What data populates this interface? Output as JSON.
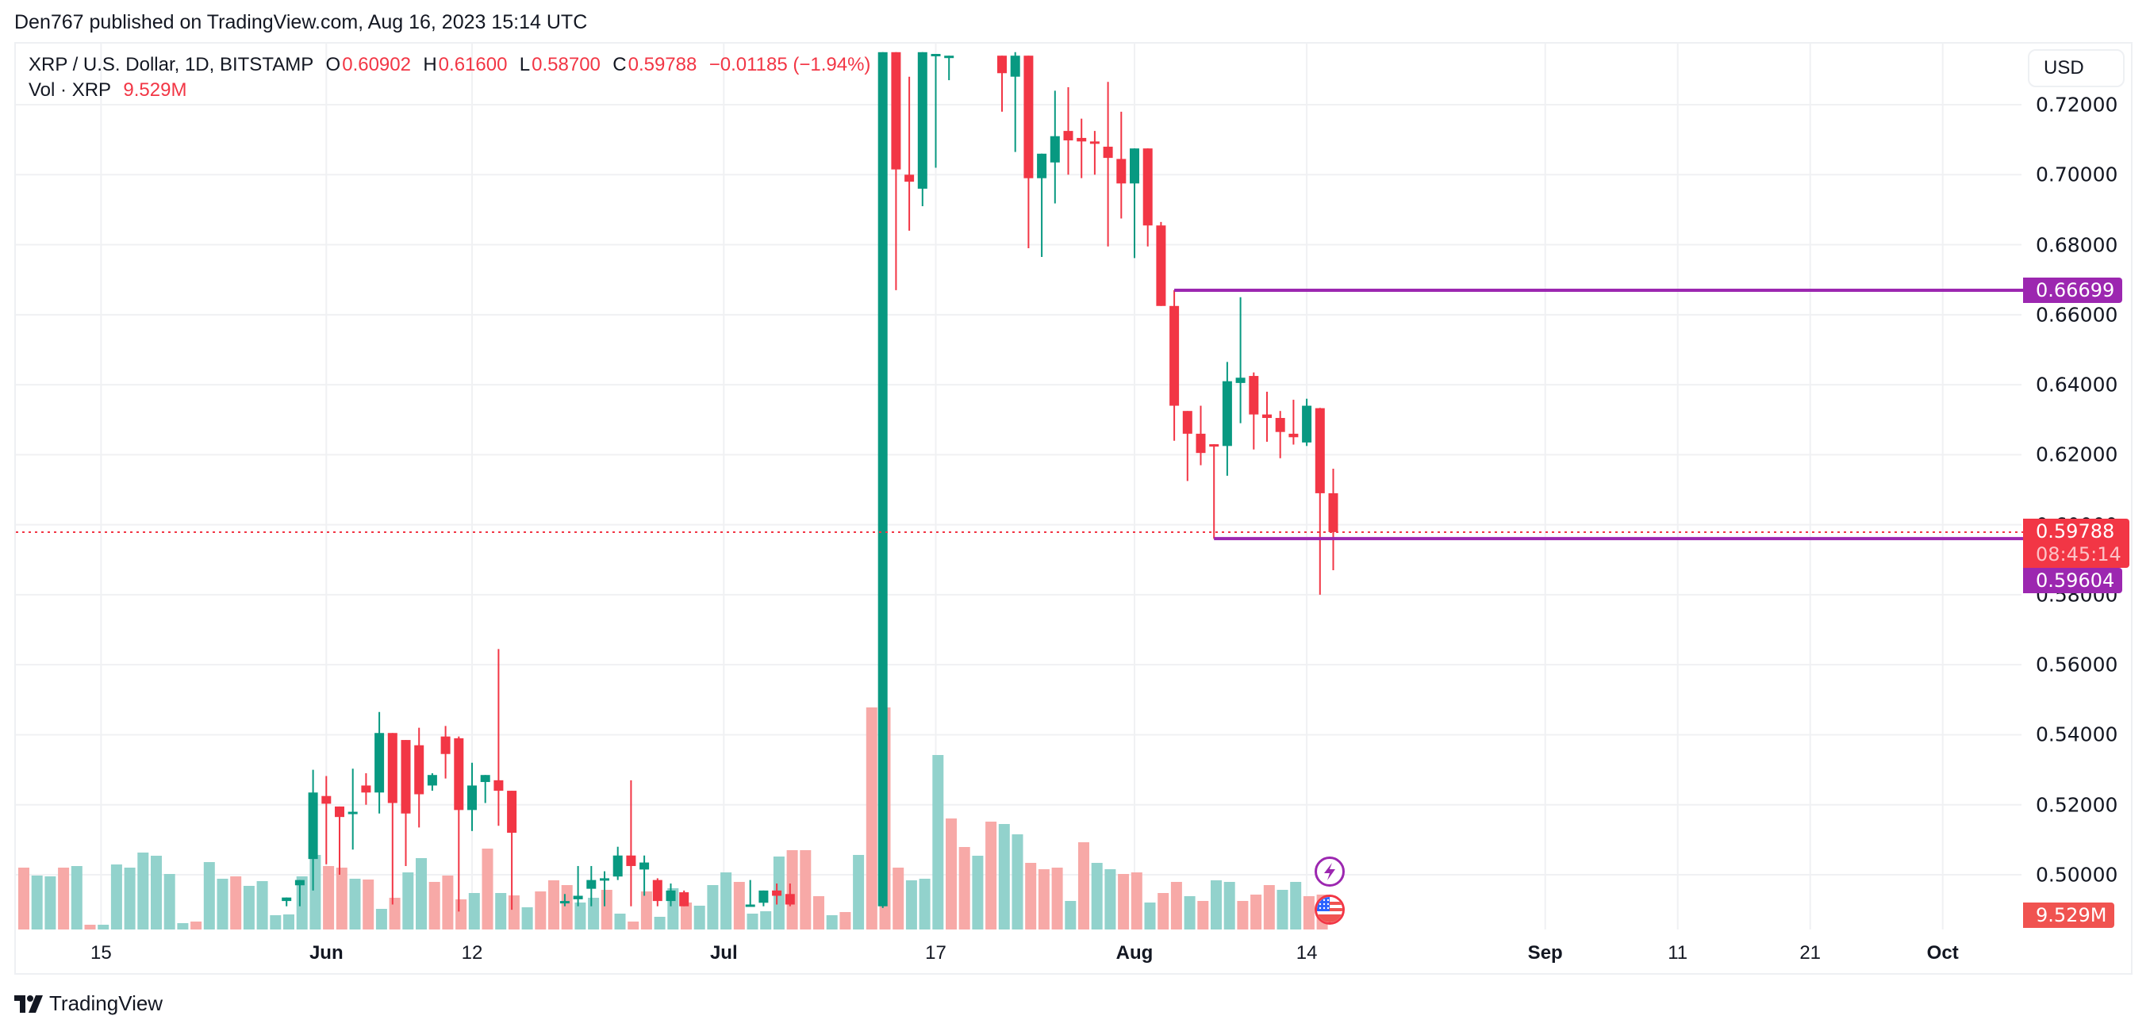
{
  "header": {
    "published": "Den767 published on TradingView.com, Aug 16, 2023 15:14 UTC"
  },
  "legend": {
    "symbol": "XRP / U.S. Dollar, 1D, BITSTAMP",
    "o_label": "O",
    "o_value": "0.60902",
    "h_label": "H",
    "h_value": "0.61600",
    "l_label": "L",
    "l_value": "0.58700",
    "c_label": "C",
    "c_value": "0.59788",
    "change": "−0.01185 (−1.94%)",
    "vol_label": "Vol · XRP",
    "vol_value": "9.529M"
  },
  "currency_button": "USD",
  "price_axis": {
    "ticks": [
      "0.72000",
      "0.70000",
      "0.68000",
      "0.66000",
      "0.64000",
      "0.62000",
      "0.60000",
      "0.58000",
      "0.56000",
      "0.54000",
      "0.52000",
      "0.50000"
    ],
    "tags": {
      "resistance": "0.66699",
      "last_price": "0.59788",
      "countdown": "08:45:14",
      "support": "0.59604",
      "volume": "9.529M"
    }
  },
  "time_axis": {
    "labels": [
      {
        "text": "15",
        "bold": false
      },
      {
        "text": "Jun",
        "bold": true
      },
      {
        "text": "12",
        "bold": false
      },
      {
        "text": "Jul",
        "bold": true
      },
      {
        "text": "17",
        "bold": false
      },
      {
        "text": "Aug",
        "bold": true
      },
      {
        "text": "14",
        "bold": false
      },
      {
        "text": "Sep",
        "bold": true
      },
      {
        "text": "11",
        "bold": false
      },
      {
        "text": "21",
        "bold": false
      },
      {
        "text": "Oct",
        "bold": true
      }
    ]
  },
  "events": [
    {
      "name": "lightning-event-icon",
      "type": "earnings"
    },
    {
      "name": "us-flag-event-icon",
      "type": "economic"
    }
  ],
  "brand": {
    "name": "TradingView"
  },
  "colors": {
    "up": "#089981",
    "down": "#f23645",
    "vol_up": "#92d2cc",
    "vol_down": "#f7a9a7",
    "level_line": "#9c27b0",
    "grid": "#f0f1f3"
  },
  "chart_data": {
    "type": "candlestick",
    "title": "XRP / U.S. Dollar, 1D, BITSTAMP",
    "ylabel": "USD",
    "ylim": [
      0.492,
      0.7325
    ],
    "x_range": [
      "2023-05-10",
      "2023-10-08"
    ],
    "x_tick_labels": [
      "15",
      "Jun",
      "12",
      "Jul",
      "17",
      "Aug",
      "14",
      "Sep",
      "11",
      "21",
      "Oct"
    ],
    "y_tick_labels": [
      "0.72000",
      "0.70000",
      "0.68000",
      "0.66000",
      "0.64000",
      "0.62000",
      "0.60000",
      "0.58000",
      "0.56000",
      "0.54000",
      "0.52000",
      "0.50000"
    ],
    "horizontal_lines": [
      {
        "label": "resistance",
        "value": 0.66699,
        "from": "2023-08-04"
      },
      {
        "label": "support",
        "value": 0.59604,
        "from": "2023-08-07"
      }
    ],
    "last": {
      "open": 0.60902,
      "high": 0.616,
      "low": 0.587,
      "close": 0.59788,
      "change": -0.01185,
      "change_pct": -1.94,
      "volume": "9.529M"
    },
    "candles": [
      {
        "d": "2023-05-29",
        "o": 0.4925,
        "h": 0.4935,
        "l": 0.491,
        "c": 0.4935
      },
      {
        "d": "2023-05-30",
        "o": 0.497,
        "h": 0.4985,
        "l": 0.491,
        "c": 0.4985
      },
      {
        "d": "2023-05-31",
        "o": 0.5045,
        "h": 0.53,
        "l": 0.4955,
        "c": 0.5235
      },
      {
        "d": "2023-06-01",
        "o": 0.5225,
        "h": 0.5282,
        "l": 0.503,
        "c": 0.5203
      },
      {
        "d": "2023-06-02",
        "o": 0.5195,
        "h": 0.5195,
        "l": 0.5,
        "c": 0.5165
      },
      {
        "d": "2023-06-03",
        "o": 0.518,
        "h": 0.5303,
        "l": 0.5072,
        "c": 0.518
      },
      {
        "d": "2023-06-04",
        "o": 0.5255,
        "h": 0.529,
        "l": 0.52,
        "c": 0.5235
      },
      {
        "d": "2023-06-05",
        "o": 0.5235,
        "h": 0.5465,
        "l": 0.5175,
        "c": 0.5405
      },
      {
        "d": "2023-06-06",
        "o": 0.5405,
        "h": 0.5375,
        "l": 0.4915,
        "c": 0.5205
      },
      {
        "d": "2023-06-07",
        "o": 0.5385,
        "h": 0.5385,
        "l": 0.5025,
        "c": 0.5175
      },
      {
        "d": "2023-06-08",
        "o": 0.537,
        "h": 0.542,
        "l": 0.5135,
        "c": 0.523
      },
      {
        "d": "2023-06-09",
        "o": 0.5255,
        "h": 0.529,
        "l": 0.524,
        "c": 0.5285
      },
      {
        "d": "2023-06-10",
        "o": 0.5395,
        "h": 0.5425,
        "l": 0.5275,
        "c": 0.5345
      },
      {
        "d": "2023-06-11",
        "o": 0.539,
        "h": 0.5395,
        "l": 0.4895,
        "c": 0.5185
      },
      {
        "d": "2023-06-12",
        "o": 0.5185,
        "h": 0.532,
        "l": 0.5125,
        "c": 0.5255
      },
      {
        "d": "2023-06-13",
        "o": 0.5265,
        "h": 0.5285,
        "l": 0.5205,
        "c": 0.5285
      },
      {
        "d": "2023-06-14",
        "o": 0.527,
        "h": 0.5645,
        "l": 0.514,
        "c": 0.524
      },
      {
        "d": "2023-06-15",
        "o": 0.524,
        "h": 0.522,
        "l": 0.49,
        "c": 0.512
      },
      {
        "d": "2023-06-19",
        "o": 0.4925,
        "h": 0.4945,
        "l": 0.491,
        "c": 0.4925
      },
      {
        "d": "2023-06-20",
        "o": 0.493,
        "h": 0.5025,
        "l": 0.491,
        "c": 0.494
      },
      {
        "d": "2023-06-21",
        "o": 0.496,
        "h": 0.5025,
        "l": 0.491,
        "c": 0.4985
      },
      {
        "d": "2023-06-22",
        "o": 0.499,
        "h": 0.501,
        "l": 0.491,
        "c": 0.499
      },
      {
        "d": "2023-06-23",
        "o": 0.4995,
        "h": 0.508,
        "l": 0.4985,
        "c": 0.5055
      },
      {
        "d": "2023-06-24",
        "o": 0.5055,
        "h": 0.527,
        "l": 0.491,
        "c": 0.5025
      },
      {
        "d": "2023-06-25",
        "o": 0.5015,
        "h": 0.5055,
        "l": 0.494,
        "c": 0.5035
      },
      {
        "d": "2023-06-26",
        "o": 0.4985,
        "h": 0.499,
        "l": 0.491,
        "c": 0.4925
      },
      {
        "d": "2023-06-27",
        "o": 0.4925,
        "h": 0.4975,
        "l": 0.491,
        "c": 0.4955
      },
      {
        "d": "2023-06-28",
        "o": 0.495,
        "h": 0.4955,
        "l": 0.491,
        "c": 0.491
      },
      {
        "d": "2023-07-03",
        "o": 0.491,
        "h": 0.4985,
        "l": 0.491,
        "c": 0.4915
      },
      {
        "d": "2023-07-04",
        "o": 0.492,
        "h": 0.4935,
        "l": 0.491,
        "c": 0.4955
      },
      {
        "d": "2023-07-05",
        "o": 0.4955,
        "h": 0.4975,
        "l": 0.4915,
        "c": 0.494
      },
      {
        "d": "2023-07-06",
        "o": 0.4945,
        "h": 0.4975,
        "l": 0.491,
        "c": 0.4915
      },
      {
        "d": "2023-07-13",
        "o": 0.491,
        "h": 0.735,
        "l": 0.4905,
        "c": 0.735
      },
      {
        "d": "2023-07-14",
        "o": 0.735,
        "h": 0.735,
        "l": 0.667,
        "c": 0.7015
      },
      {
        "d": "2023-07-15",
        "o": 0.7,
        "h": 0.728,
        "l": 0.684,
        "c": 0.698
      },
      {
        "d": "2023-07-16",
        "o": 0.696,
        "h": 0.735,
        "l": 0.691,
        "c": 0.735
      },
      {
        "d": "2023-07-17",
        "o": 0.7345,
        "h": 0.7345,
        "l": 0.702,
        "c": 0.7345
      },
      {
        "d": "2023-07-18",
        "o": 0.7335,
        "h": 0.734,
        "l": 0.727,
        "c": 0.734
      },
      {
        "d": "2023-07-22",
        "o": 0.734,
        "h": 0.734,
        "l": 0.718,
        "c": 0.729
      },
      {
        "d": "2023-07-23",
        "o": 0.728,
        "h": 0.735,
        "l": 0.7065,
        "c": 0.734
      },
      {
        "d": "2023-07-24",
        "o": 0.734,
        "h": 0.734,
        "l": 0.679,
        "c": 0.699
      },
      {
        "d": "2023-07-25",
        "o": 0.699,
        "h": 0.706,
        "l": 0.6765,
        "c": 0.706
      },
      {
        "d": "2023-07-26",
        "o": 0.7035,
        "h": 0.724,
        "l": 0.6918,
        "c": 0.711
      },
      {
        "d": "2023-07-27",
        "o": 0.7125,
        "h": 0.725,
        "l": 0.7,
        "c": 0.7098
      },
      {
        "d": "2023-07-28",
        "o": 0.7105,
        "h": 0.716,
        "l": 0.699,
        "c": 0.7095
      },
      {
        "d": "2023-07-29",
        "o": 0.7095,
        "h": 0.7125,
        "l": 0.7,
        "c": 0.709
      },
      {
        "d": "2023-07-30",
        "o": 0.708,
        "h": 0.7265,
        "l": 0.6795,
        "c": 0.7048
      },
      {
        "d": "2023-07-31",
        "o": 0.7045,
        "h": 0.718,
        "l": 0.6875,
        "c": 0.6975
      },
      {
        "d": "2023-08-01",
        "o": 0.6975,
        "h": 0.7075,
        "l": 0.6762,
        "c": 0.7075
      },
      {
        "d": "2023-08-02",
        "o": 0.7075,
        "h": 0.7075,
        "l": 0.6795,
        "c": 0.6855
      },
      {
        "d": "2023-08-03",
        "o": 0.6855,
        "h": 0.6865,
        "l": 0.6655,
        "c": 0.6625
      },
      {
        "d": "2023-08-04",
        "o": 0.6625,
        "h": 0.667,
        "l": 0.624,
        "c": 0.634
      },
      {
        "d": "2023-08-05",
        "o": 0.6325,
        "h": 0.6325,
        "l": 0.6125,
        "c": 0.626
      },
      {
        "d": "2023-08-06",
        "o": 0.626,
        "h": 0.634,
        "l": 0.617,
        "c": 0.6205
      },
      {
        "d": "2023-08-07",
        "o": 0.623,
        "h": 0.623,
        "l": 0.596,
        "c": 0.6225
      },
      {
        "d": "2023-08-08",
        "o": 0.6225,
        "h": 0.6465,
        "l": 0.614,
        "c": 0.641
      },
      {
        "d": "2023-08-09",
        "o": 0.6405,
        "h": 0.665,
        "l": 0.629,
        "c": 0.642
      },
      {
        "d": "2023-08-10",
        "o": 0.6425,
        "h": 0.6435,
        "l": 0.6215,
        "c": 0.6315
      },
      {
        "d": "2023-08-11",
        "o": 0.6315,
        "h": 0.638,
        "l": 0.6237,
        "c": 0.6305
      },
      {
        "d": "2023-08-12",
        "o": 0.6305,
        "h": 0.6325,
        "l": 0.619,
        "c": 0.6265
      },
      {
        "d": "2023-08-13",
        "o": 0.626,
        "h": 0.6357,
        "l": 0.6229,
        "c": 0.625
      },
      {
        "d": "2023-08-14",
        "o": 0.6235,
        "h": 0.636,
        "l": 0.6225,
        "c": 0.634
      },
      {
        "d": "2023-08-15",
        "o": 0.6333,
        "h": 0.6334,
        "l": 0.58,
        "c": 0.609
      },
      {
        "d": "2023-08-16",
        "o": 0.609,
        "h": 0.616,
        "l": 0.587,
        "c": 0.5979
      }
    ]
  }
}
